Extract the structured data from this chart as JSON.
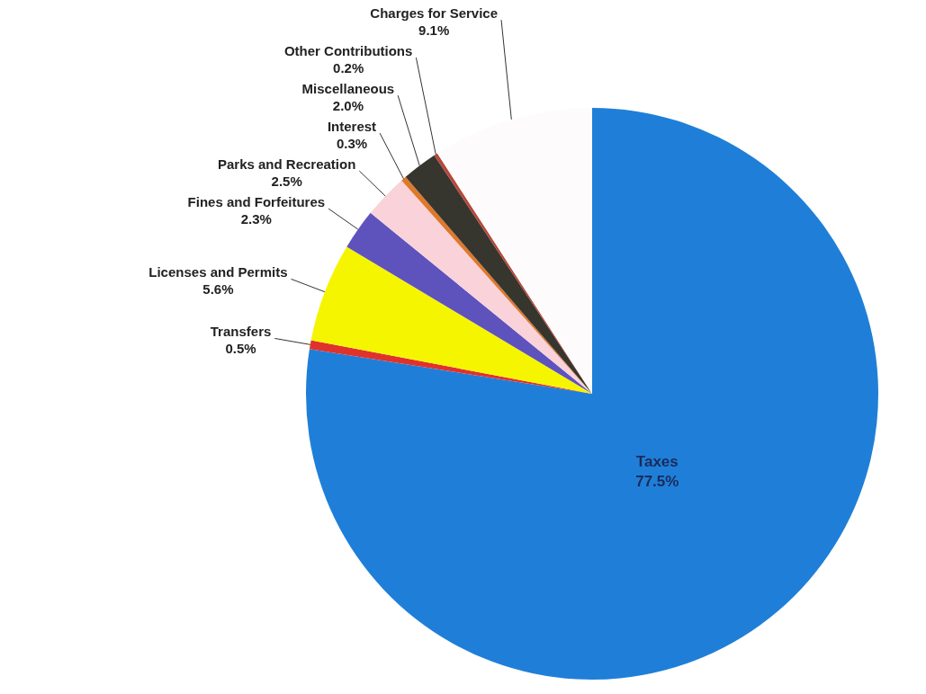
{
  "chart_data": {
    "type": "pie",
    "categories": [
      "Taxes",
      "Transfers",
      "Licenses and Permits",
      "Fines and Forfeitures",
      "Parks and Recreation",
      "Interest",
      "Miscellaneous",
      "Other Contributions",
      "Charges for Service"
    ],
    "values": [
      77.5,
      0.5,
      5.6,
      2.3,
      2.5,
      0.3,
      2.0,
      0.2,
      9.1
    ],
    "colors": [
      "#1f7fd8",
      "#e0322c",
      "#f6f500",
      "#5e52bd",
      "#f9d2da",
      "#e0782a",
      "#36362e",
      "#b8463a",
      "#fdfbfb"
    ],
    "value_labels": [
      "77.5%",
      "0.5%",
      "5.6%",
      "2.3%",
      "2.5%",
      "0.3%",
      "2.0%",
      "0.2%",
      "9.1%"
    ],
    "legend": false
  }
}
